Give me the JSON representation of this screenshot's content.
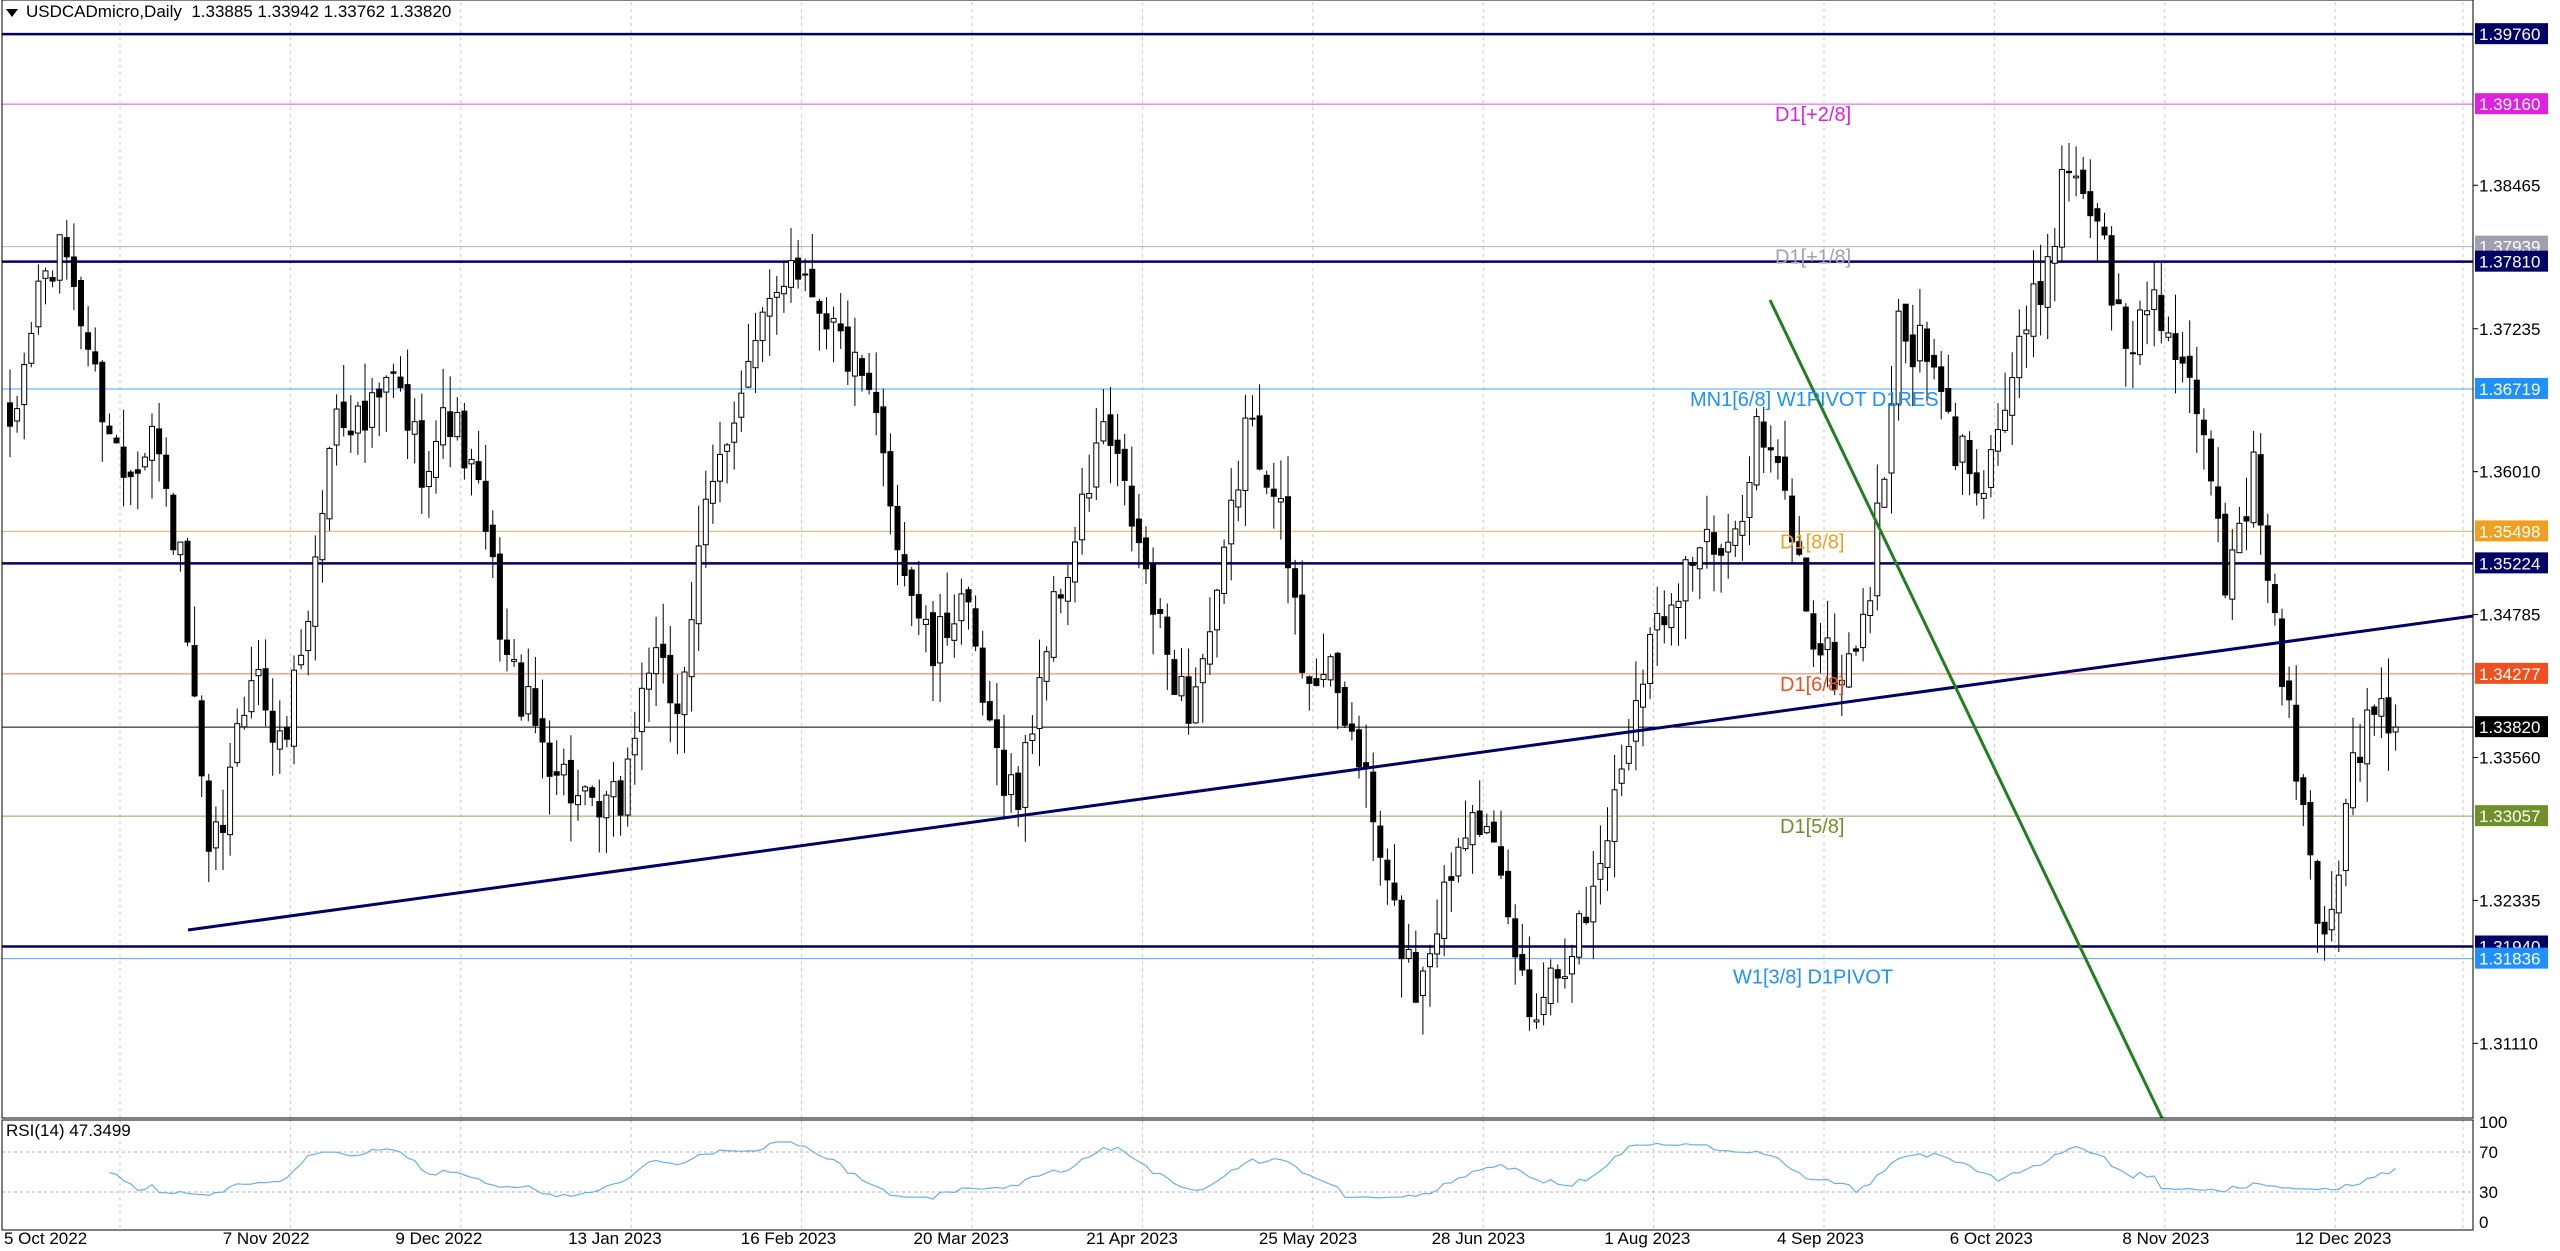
{
  "header": {
    "symbol": "USDCADmicro,Daily",
    "ohlc": "1.33885 1.33942 1.33762 1.33820"
  },
  "rsi": {
    "label": "RSI(14) 47.3499",
    "period": 14,
    "value": 47.3499,
    "levels": [
      70,
      30
    ],
    "axis_labels": [
      "100",
      "70",
      "30",
      "0"
    ]
  },
  "colors": {
    "navy": "#000066",
    "light_blue": "#1e90ff",
    "magenta": "#e020e0",
    "grey": "#a0a0b0",
    "orange": "#f0a020",
    "red_orange": "#f05020",
    "olive": "#70902a",
    "green": "#208020",
    "rsi_line": "#6ab0e8"
  },
  "levels": [
    {
      "price": 1.3976,
      "label_box": "1.39760",
      "color": "#000066",
      "style": "thick",
      "text": ""
    },
    {
      "price": 1.3916,
      "label_box": "1.39160",
      "color": "#e020e0",
      "style": "thin",
      "text": "D1[+2/8]"
    },
    {
      "price": 1.37939,
      "label_box": "1.37939",
      "color": "#a0a0b0",
      "style": "thin",
      "text": "D1[+1/8]"
    },
    {
      "price": 1.3781,
      "label_box": "1.37810",
      "color": "#000066",
      "style": "thick",
      "text": ""
    },
    {
      "price": 1.36719,
      "label_box": "1.36719",
      "color": "#1e90ff",
      "style": "thin",
      "text": "MN1[6/8] W1PIVOT D1RES"
    },
    {
      "price": 1.35498,
      "label_box": "1.35498",
      "color": "#f0a020",
      "style": "thin",
      "text": "D1[8/8]"
    },
    {
      "price": 1.35224,
      "label_box": "1.35224",
      "color": "#000066",
      "style": "thick",
      "text": ""
    },
    {
      "price": 1.34277,
      "label_box": "1.34277",
      "color": "#f05020",
      "style": "thin",
      "text": "D1[6/8]"
    },
    {
      "price": 1.3382,
      "label_box": "1.33820",
      "color": "#000000",
      "style": "current",
      "text": ""
    },
    {
      "price": 1.33057,
      "label_box": "1.33057",
      "color": "#70902a",
      "style": "thin",
      "text": "D1[5/8]"
    },
    {
      "price": 1.3194,
      "label_box": "1.31940",
      "color": "#000066",
      "style": "thick",
      "text": ""
    },
    {
      "price": 1.31836,
      "label_box": "1.31836",
      "color": "#1e90ff",
      "style": "thin",
      "text": "W1[3/8] D1PIVOT"
    }
  ],
  "trendlines": [
    {
      "name": "rising-support",
      "color": "#000066",
      "points": [
        [
          45,
          1.3238
        ],
        [
          470,
          1.351
        ]
      ]
    },
    {
      "name": "falling-resistance",
      "color": "#208020",
      "points": [
        [
          422,
          1.3776
        ],
        [
          517,
          1.3047
        ]
      ]
    }
  ],
  "chart_data": {
    "type": "candlestick",
    "title": "USDCADmicro,Daily",
    "y_ticks": [
      "1.39760",
      "1.39160",
      "1.38465",
      "1.37939",
      "1.37810",
      "1.37235",
      "1.36719",
      "1.36010",
      "1.35498",
      "1.35224",
      "1.34785",
      "1.34277",
      "1.33820",
      "1.33560",
      "1.33057",
      "1.32335",
      "1.31940",
      "1.31836",
      "1.31110"
    ],
    "y_tick_values": [
      1.38465,
      1.37235,
      1.3601,
      1.34785,
      1.3356,
      1.32335,
      1.3111
    ],
    "ylim": [
      1.3047,
      1.3995
    ],
    "x_tick_labels": [
      {
        "label": "5 Oct 2022",
        "bar": 0
      },
      {
        "label": "7 Nov 2022",
        "bar": 24
      },
      {
        "label": "9 Dec 2022",
        "bar": 48
      },
      {
        "label": "13 Jan 2023",
        "bar": 72
      },
      {
        "label": "16 Feb 2023",
        "bar": 96
      },
      {
        "label": "20 Mar 2023",
        "bar": 120
      },
      {
        "label": "21 Apr 2023",
        "bar": 144
      },
      {
        "label": "25 May 2023",
        "bar": 168
      },
      {
        "label": "28 Jun 2023",
        "bar": 192
      },
      {
        "label": "1 Aug 2023",
        "bar": 216
      },
      {
        "label": "4 Sep 2023",
        "bar": 240
      },
      {
        "label": "6 Oct 2023",
        "bar": 264
      },
      {
        "label": "8 Nov 2023",
        "bar": 288
      },
      {
        "label": "12 Dec 2023",
        "bar": 312
      }
    ],
    "bars_total_visible": 370,
    "last_bar": 329,
    "close_path": [
      [
        0,
        1.362
      ],
      [
        4,
        1.376
      ],
      [
        8,
        1.379
      ],
      [
        12,
        1.368
      ],
      [
        16,
        1.36
      ],
      [
        20,
        1.364
      ],
      [
        24,
        1.352
      ],
      [
        26,
        1.339
      ],
      [
        28,
        1.326
      ],
      [
        30,
        1.33
      ],
      [
        34,
        1.344
      ],
      [
        38,
        1.336
      ],
      [
        42,
        1.348
      ],
      [
        46,
        1.366
      ],
      [
        50,
        1.364
      ],
      [
        54,
        1.368
      ],
      [
        58,
        1.361
      ],
      [
        62,
        1.365
      ],
      [
        66,
        1.358
      ],
      [
        70,
        1.344
      ],
      [
        74,
        1.338
      ],
      [
        78,
        1.334
      ],
      [
        82,
        1.33
      ],
      [
        86,
        1.332
      ],
      [
        90,
        1.344
      ],
      [
        94,
        1.34
      ],
      [
        98,
        1.356
      ],
      [
        102,
        1.366
      ],
      [
        106,
        1.372
      ],
      [
        110,
        1.379
      ],
      [
        114,
        1.375
      ],
      [
        118,
        1.37
      ],
      [
        122,
        1.364
      ],
      [
        126,
        1.352
      ],
      [
        130,
        1.344
      ],
      [
        134,
        1.35
      ],
      [
        138,
        1.337
      ],
      [
        142,
        1.332
      ],
      [
        146,
        1.346
      ],
      [
        150,
        1.354
      ],
      [
        154,
        1.364
      ],
      [
        158,
        1.356
      ],
      [
        162,
        1.346
      ],
      [
        166,
        1.34
      ],
      [
        170,
        1.348
      ],
      [
        174,
        1.364
      ],
      [
        178,
        1.36
      ],
      [
        182,
        1.344
      ],
      [
        186,
        1.342
      ],
      [
        190,
        1.336
      ],
      [
        194,
        1.324
      ],
      [
        198,
        1.316
      ],
      [
        202,
        1.324
      ],
      [
        206,
        1.333
      ],
      [
        210,
        1.324
      ],
      [
        214,
        1.314
      ],
      [
        218,
        1.318
      ],
      [
        222,
        1.322
      ],
      [
        226,
        1.332
      ],
      [
        230,
        1.344
      ],
      [
        234,
        1.35
      ],
      [
        238,
        1.354
      ],
      [
        242,
        1.352
      ],
      [
        246,
        1.364
      ],
      [
        250,
        1.358
      ],
      [
        254,
        1.346
      ],
      [
        258,
        1.342
      ],
      [
        262,
        1.35
      ],
      [
        266,
        1.372
      ],
      [
        270,
        1.37
      ],
      [
        274,
        1.362
      ],
      [
        278,
        1.36
      ],
      [
        282,
        1.368
      ],
      [
        286,
        1.376
      ],
      [
        290,
        1.387
      ],
      [
        294,
        1.382
      ],
      [
        298,
        1.37
      ],
      [
        302,
        1.376
      ],
      [
        306,
        1.368
      ],
      [
        310,
        1.36
      ],
      [
        312,
        1.351
      ],
      [
        314,
        1.356
      ],
      [
        316,
        1.36
      ],
      [
        318,
        1.352
      ],
      [
        320,
        1.342
      ],
      [
        322,
        1.335
      ],
      [
        324,
        1.326
      ],
      [
        326,
        1.32
      ],
      [
        328,
        1.327
      ],
      [
        330,
        1.336
      ],
      [
        332,
        1.338
      ],
      [
        334,
        1.34
      ],
      [
        336,
        1.3382
      ]
    ]
  }
}
